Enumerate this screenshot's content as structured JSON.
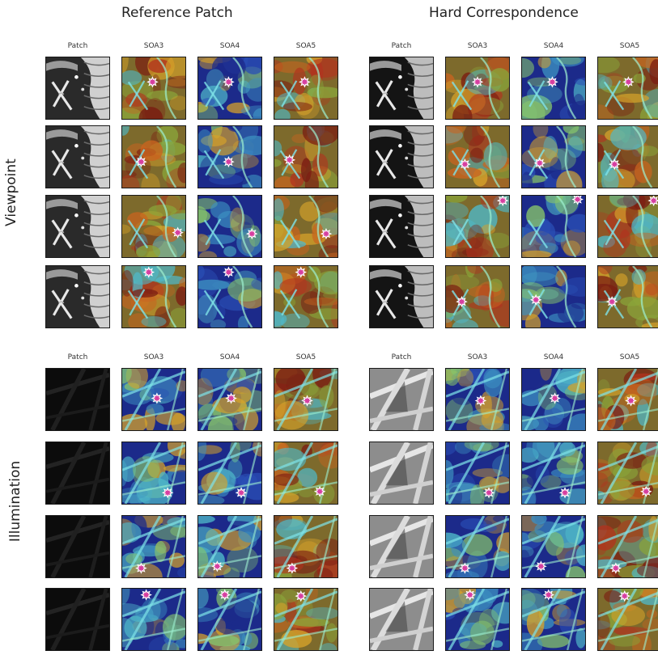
{
  "titles": {
    "left": "Reference Patch",
    "right": "Hard Correspondence"
  },
  "row_labels": {
    "top": "Viewpoint",
    "bottom": "Illumination"
  },
  "column_labels": [
    "Patch",
    "SOA3",
    "SOA4",
    "SOA5"
  ],
  "colors": {
    "marker": "#d63fa0",
    "marker_outline": "#ffffff",
    "heat_low": "#1c2a8a",
    "heat_mid": "#4fb9c9",
    "heat_high": "#b2331e",
    "frame": "#1a1a1a"
  },
  "blocks": [
    {
      "group": "viewpoint",
      "side": "reference",
      "patch_style": "aerial-gray",
      "heat": [
        "warm",
        "cool",
        "warm"
      ]
    },
    {
      "group": "viewpoint",
      "side": "hard",
      "patch_style": "aerial-dark",
      "heat": [
        "warm",
        "cool",
        "warm"
      ]
    },
    {
      "group": "illumination",
      "side": "reference",
      "patch_style": "night-dark",
      "heat": [
        "cool",
        "cool",
        "warm"
      ]
    },
    {
      "group": "illumination",
      "side": "hard",
      "patch_style": "bright-gray",
      "heat": [
        "cool",
        "cool",
        "warm"
      ]
    }
  ]
}
